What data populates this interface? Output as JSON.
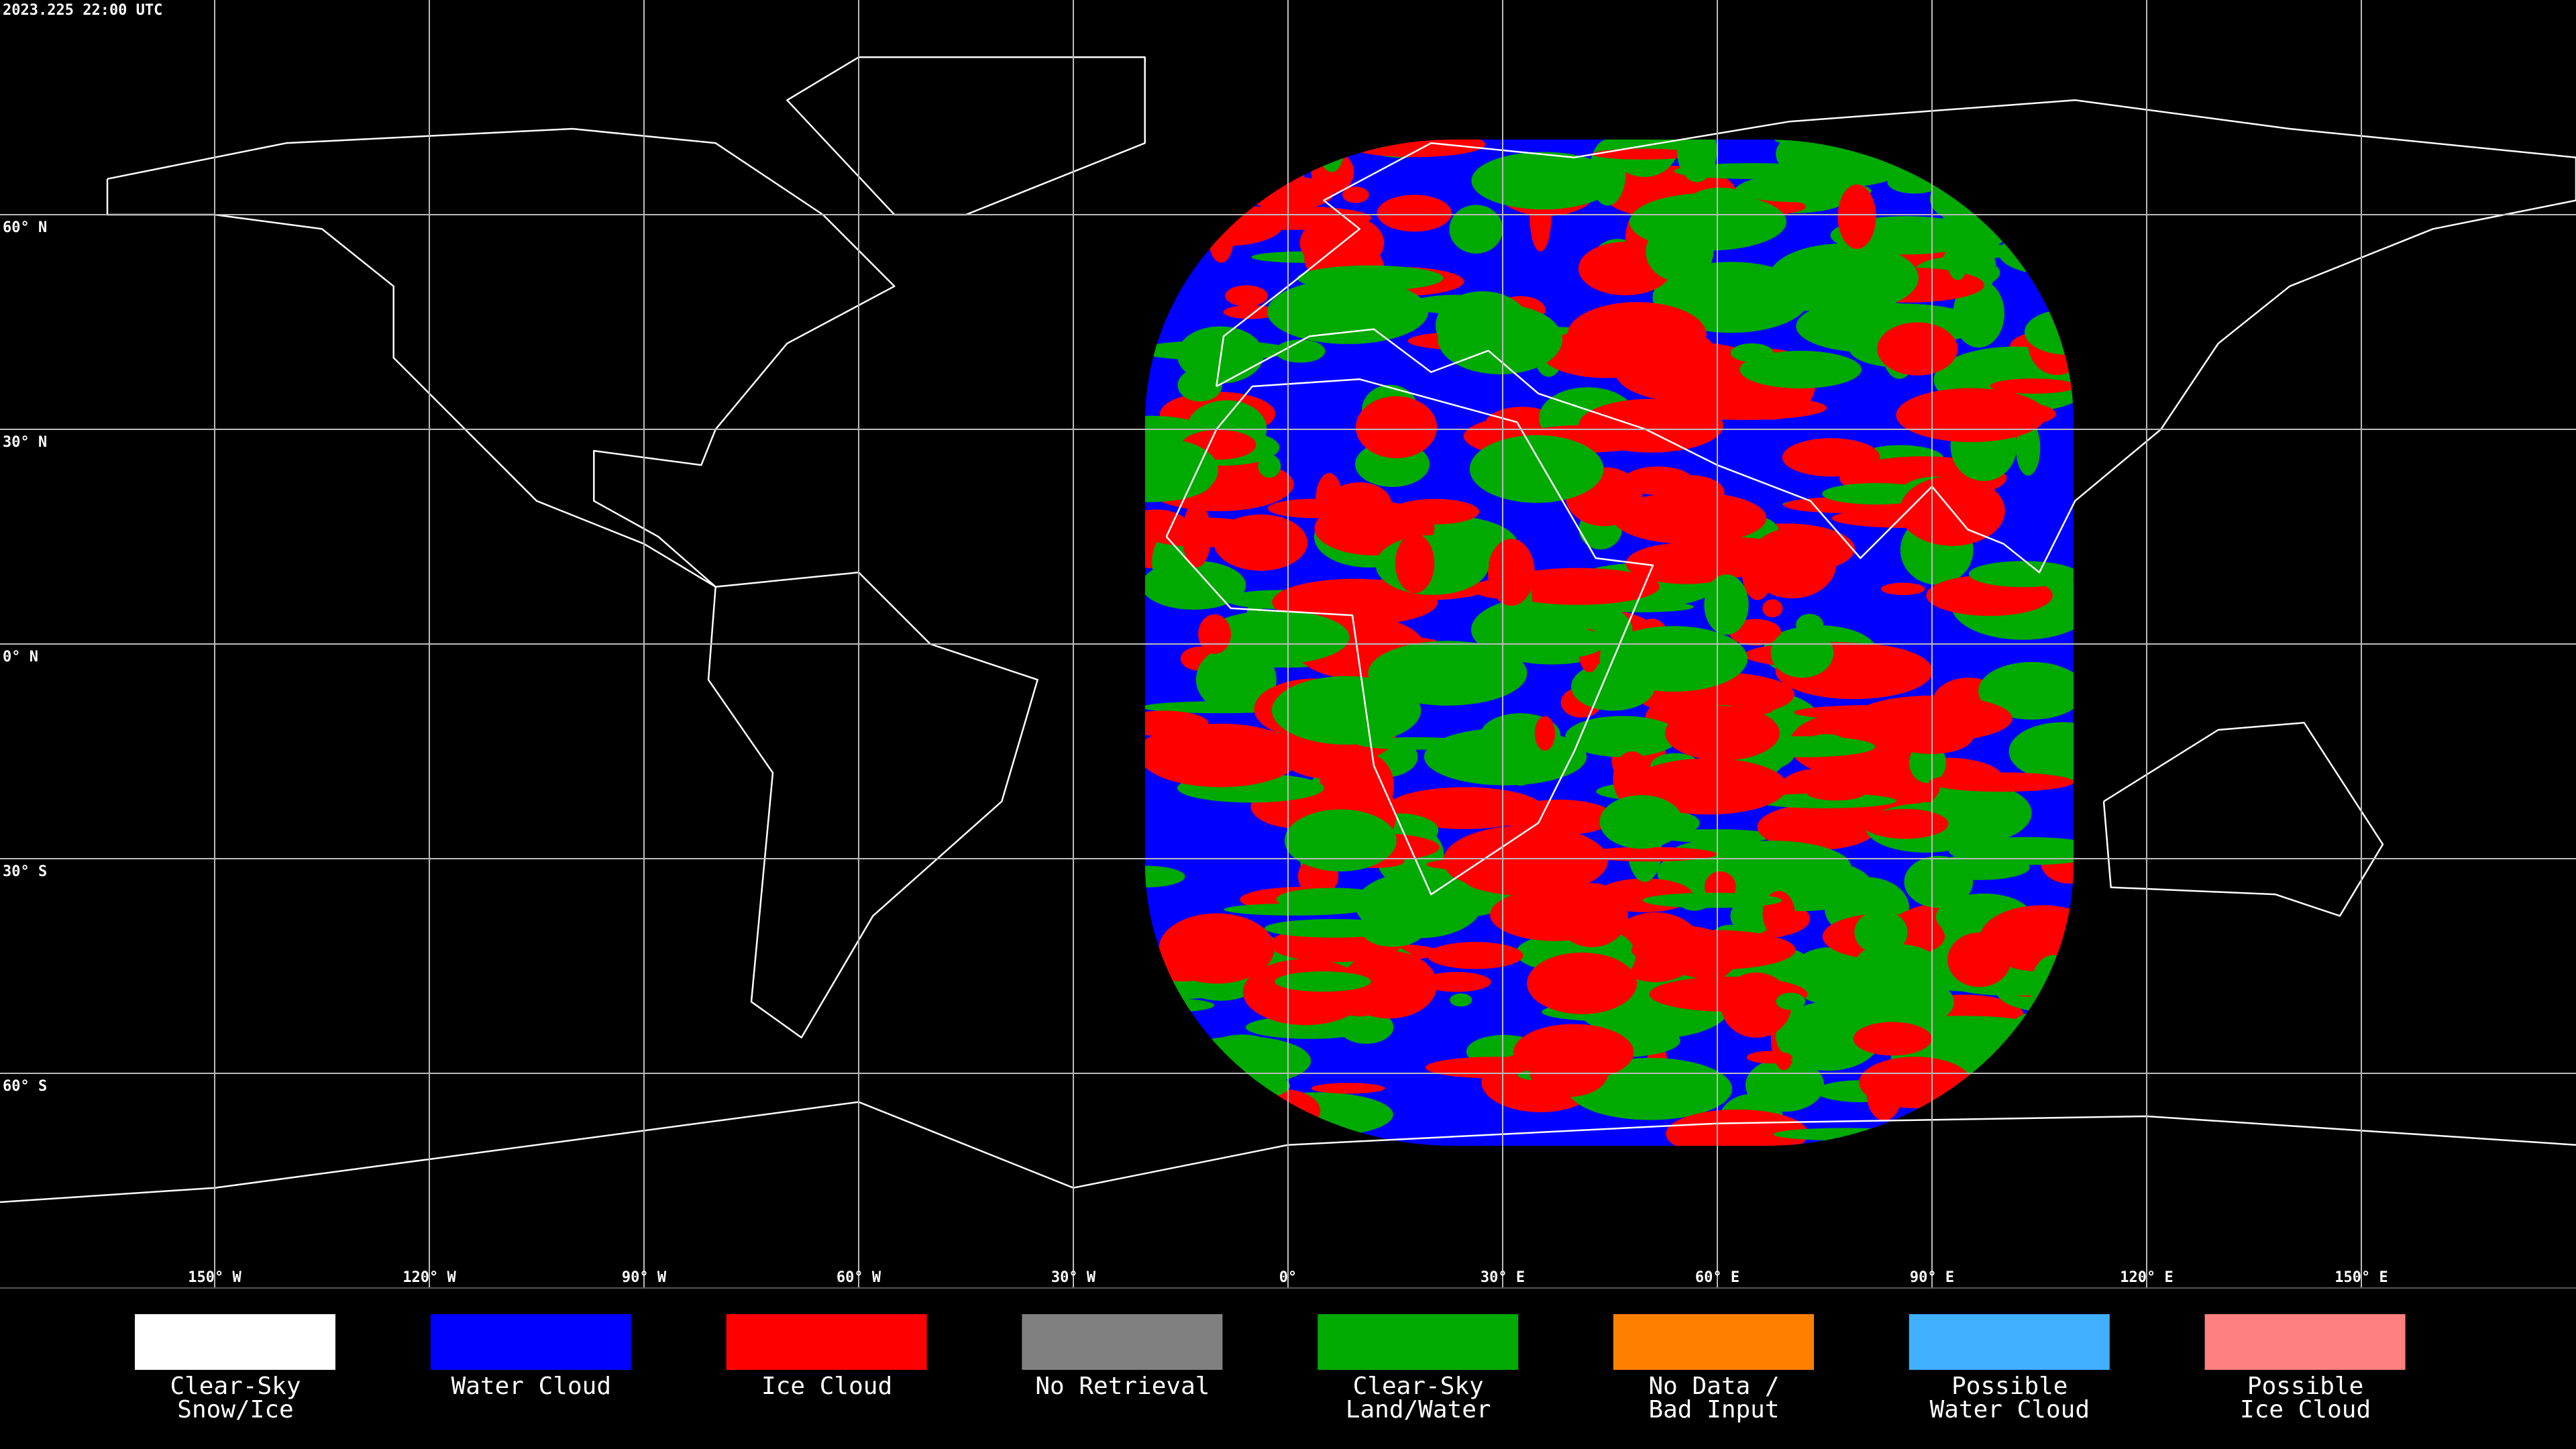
{
  "header": {
    "timestamp": "2023.225 22:00 UTC"
  },
  "map": {
    "lat_labels": [
      "60° N",
      "30° N",
      "0° N",
      "30° S",
      "60° S"
    ],
    "lon_labels": [
      "150° W",
      "120° W",
      "90° W",
      "60° W",
      "30° W",
      "0°",
      "30° E",
      "60° E",
      "90° E",
      "120° E",
      "150° E"
    ]
  },
  "legend": [
    {
      "label": [
        "Clear-Sky",
        "Snow/Ice"
      ],
      "color": "#ffffff"
    },
    {
      "label": [
        "Water Cloud"
      ],
      "color": "#0000ff"
    },
    {
      "label": [
        "Ice Cloud"
      ],
      "color": "#ff0000"
    },
    {
      "label": [
        "No Retrieval"
      ],
      "color": "#808080"
    },
    {
      "label": [
        "Clear-Sky",
        "Land/Water"
      ],
      "color": "#00aa00"
    },
    {
      "label": [
        "No Data /",
        "Bad Input"
      ],
      "color": "#ff8000"
    },
    {
      "label": [
        "Possible",
        "Water Cloud"
      ],
      "color": "#40b0ff"
    },
    {
      "label": [
        "Possible",
        "Ice Cloud"
      ],
      "color": "#ff8080"
    }
  ]
}
